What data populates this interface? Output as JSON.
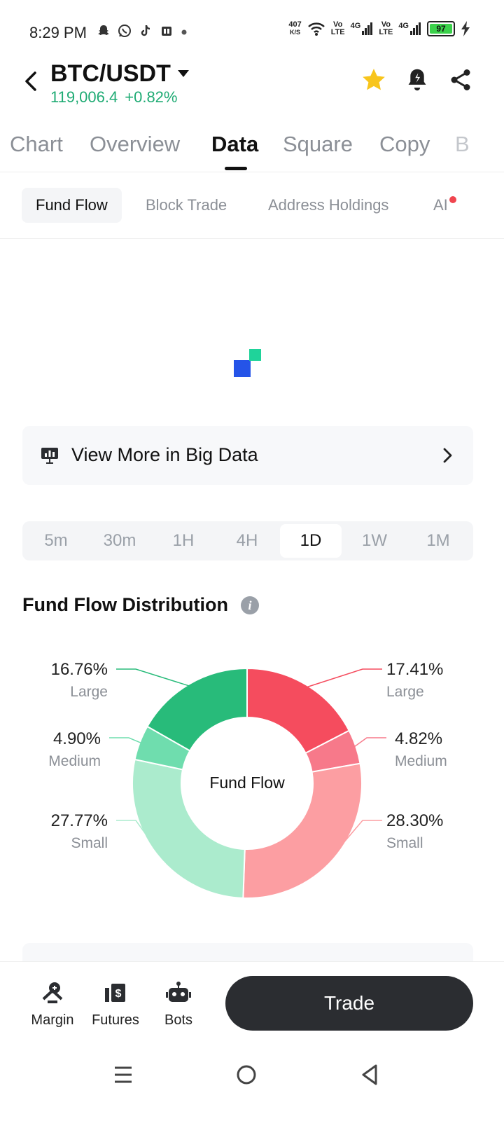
{
  "status_bar": {
    "time": "8:29 PM",
    "net_speed_value": "407",
    "net_speed_unit": "K/S",
    "net1_top": "Vo",
    "net1_bottom": "LTE",
    "net1_gen": "4G",
    "net2_top": "Vo",
    "net2_bottom": "LTE",
    "net2_gen": "4G",
    "battery": "97",
    "battery_color": "#3bd14b"
  },
  "header": {
    "pair": "BTC/USDT",
    "price": "119,006.4",
    "change": "+0.82%",
    "price_color": "#1fab74",
    "icons": [
      "back-arrow-icon",
      "caret-down-icon",
      "star-icon",
      "alert-bell-icon",
      "share-icon"
    ]
  },
  "main_tabs": [
    "Chart",
    "Overview",
    "Data",
    "Square",
    "Copy",
    "B"
  ],
  "active_main_tab": "Data",
  "sub_tabs": [
    "Fund Flow",
    "Block Trade",
    "Address Holdings",
    "AI"
  ],
  "active_sub_tab": "Fund Flow",
  "big_data": {
    "label": "View More in Big Data"
  },
  "time_options": [
    "5m",
    "30m",
    "1H",
    "4H",
    "1D",
    "1W",
    "1M"
  ],
  "active_time": "1D",
  "distribution": {
    "title": "Fund Flow Distribution",
    "info_glyph": "i",
    "center_label": "Fund Flow",
    "left_items": [
      {
        "pct": "16.76%",
        "label": "Large"
      },
      {
        "pct": "4.90%",
        "label": "Medium"
      },
      {
        "pct": "27.77%",
        "label": "Small"
      }
    ],
    "right_items": [
      {
        "pct": "17.41%",
        "label": "Large"
      },
      {
        "pct": "4.82%",
        "label": "Medium"
      },
      {
        "pct": "28.30%",
        "label": "Small"
      }
    ]
  },
  "chart_data": {
    "type": "pie",
    "title": "Fund Flow Distribution",
    "center_label": "Fund Flow",
    "slices": [
      {
        "side": "outflow",
        "label": "Large",
        "value": 17.41,
        "color": "#f54c5e"
      },
      {
        "side": "outflow",
        "label": "Medium",
        "value": 4.82,
        "color": "#f7798a"
      },
      {
        "side": "outflow",
        "label": "Small",
        "value": 28.3,
        "color": "#fc9ea2"
      },
      {
        "side": "inflow",
        "label": "Small",
        "value": 27.77,
        "color": "#abebcd"
      },
      {
        "side": "inflow",
        "label": "Medium",
        "value": 4.9,
        "color": "#6fddae"
      },
      {
        "side": "inflow",
        "label": "Large",
        "value": 16.76,
        "color": "#28bb7a"
      }
    ]
  },
  "bottom_bar": {
    "items": [
      {
        "label": "Margin",
        "icon": "margin-icon"
      },
      {
        "label": "Futures",
        "icon": "futures-icon"
      },
      {
        "label": "Bots",
        "icon": "bots-icon"
      }
    ],
    "trade_label": "Trade"
  },
  "android_nav": [
    "menu-icon",
    "home-icon",
    "back-icon"
  ]
}
